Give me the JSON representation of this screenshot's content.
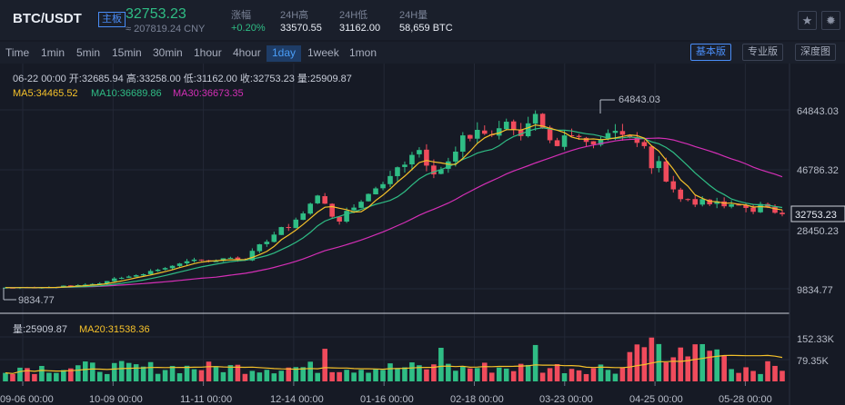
{
  "header": {
    "pair": "BTC/USDT",
    "main_tag": "主板",
    "price": "32753.23",
    "cny": "≈ 207819.24 CNY",
    "stats": [
      {
        "label": "涨幅",
        "value": "+0.20%",
        "up": true
      },
      {
        "label": "24H高",
        "value": "33570.55",
        "up": false
      },
      {
        "label": "24H低",
        "value": "31162.00",
        "up": false
      },
      {
        "label": "24H量",
        "value": "58,659 BTC",
        "up": false
      }
    ],
    "star_icon": "star-icon",
    "settings_icon": "gear-icon"
  },
  "toolbar": {
    "timeframes": [
      "Time",
      "1min",
      "5min",
      "15min",
      "30min",
      "1hour",
      "4hour",
      "1day",
      "1week",
      "1mon"
    ],
    "active_timeframe": "1day",
    "views": [
      "基本版",
      "专业版",
      "深度图"
    ],
    "active_view": "基本版"
  },
  "chart_data": {
    "type": "candlestick",
    "info_line": "06-22 00:00   开:32685.94  高:33258.00  低:31162.00  收:32753.23  量:25909.87",
    "ma_legend": [
      {
        "label": "MA5:34465.52",
        "color": "#f5c12a"
      },
      {
        "label": "MA10:36689.86",
        "color": "#2fbd85"
      },
      {
        "label": "MA30:36673.35",
        "color": "#d42fb6"
      }
    ],
    "volume_legend": [
      {
        "label": "量:25909.87",
        "color": "#c7ccd8"
      },
      {
        "label": "MA20:31538.36",
        "color": "#f5c12a"
      }
    ],
    "price_ticks": [
      "64843.03",
      "46786.32",
      "28450.23",
      "9834.77"
    ],
    "price_tick_values": [
      64843.03,
      46786.32,
      28450.23,
      9834.77
    ],
    "last_price_label": "32753.23",
    "max_marker": "64843.03",
    "min_marker": "9834.77",
    "volume_ticks": [
      "152.33K",
      "79.35K"
    ],
    "x_ticks": [
      "09-06 00:00",
      "10-09 00:00",
      "11-11 00:00",
      "12-14 00:00",
      "01-16 00:00",
      "02-18 00:00",
      "03-23 00:00",
      "04-25 00:00",
      "05-28 00:00"
    ],
    "closes": [
      10200,
      10150,
      10250,
      10200,
      10100,
      10220,
      10350,
      10400,
      10800,
      10700,
      10950,
      11100,
      11300,
      11500,
      12200,
      13000,
      13200,
      13600,
      14000,
      14300,
      15300,
      15700,
      16200,
      16900,
      17600,
      18300,
      18800,
      18600,
      18250,
      18300,
      19200,
      19350,
      18800,
      18500,
      21500,
      23500,
      24300,
      26500,
      28800,
      28600,
      31100,
      33000,
      36000,
      38500,
      36000,
      32000,
      30500,
      33800,
      34800,
      36600,
      39000,
      40700,
      42000,
      44500,
      47200,
      48000,
      51000,
      52500,
      47700,
      45000,
      46500,
      49000,
      52000,
      57000,
      56000,
      58700,
      57500,
      57200,
      59200,
      61200,
      58800,
      56800,
      60700,
      63600,
      59400,
      55500,
      53700,
      57000,
      56900,
      56500,
      55000,
      54200,
      55800,
      57700,
      58400,
      57200,
      56600,
      54700,
      53700,
      46900,
      49100,
      42800,
      40400,
      37400,
      37300,
      35700,
      37400,
      35800,
      36700,
      35200,
      35800,
      35600,
      34700,
      33500,
      35900,
      35000,
      33200,
      32753
    ],
    "volume_max": 152330
  }
}
